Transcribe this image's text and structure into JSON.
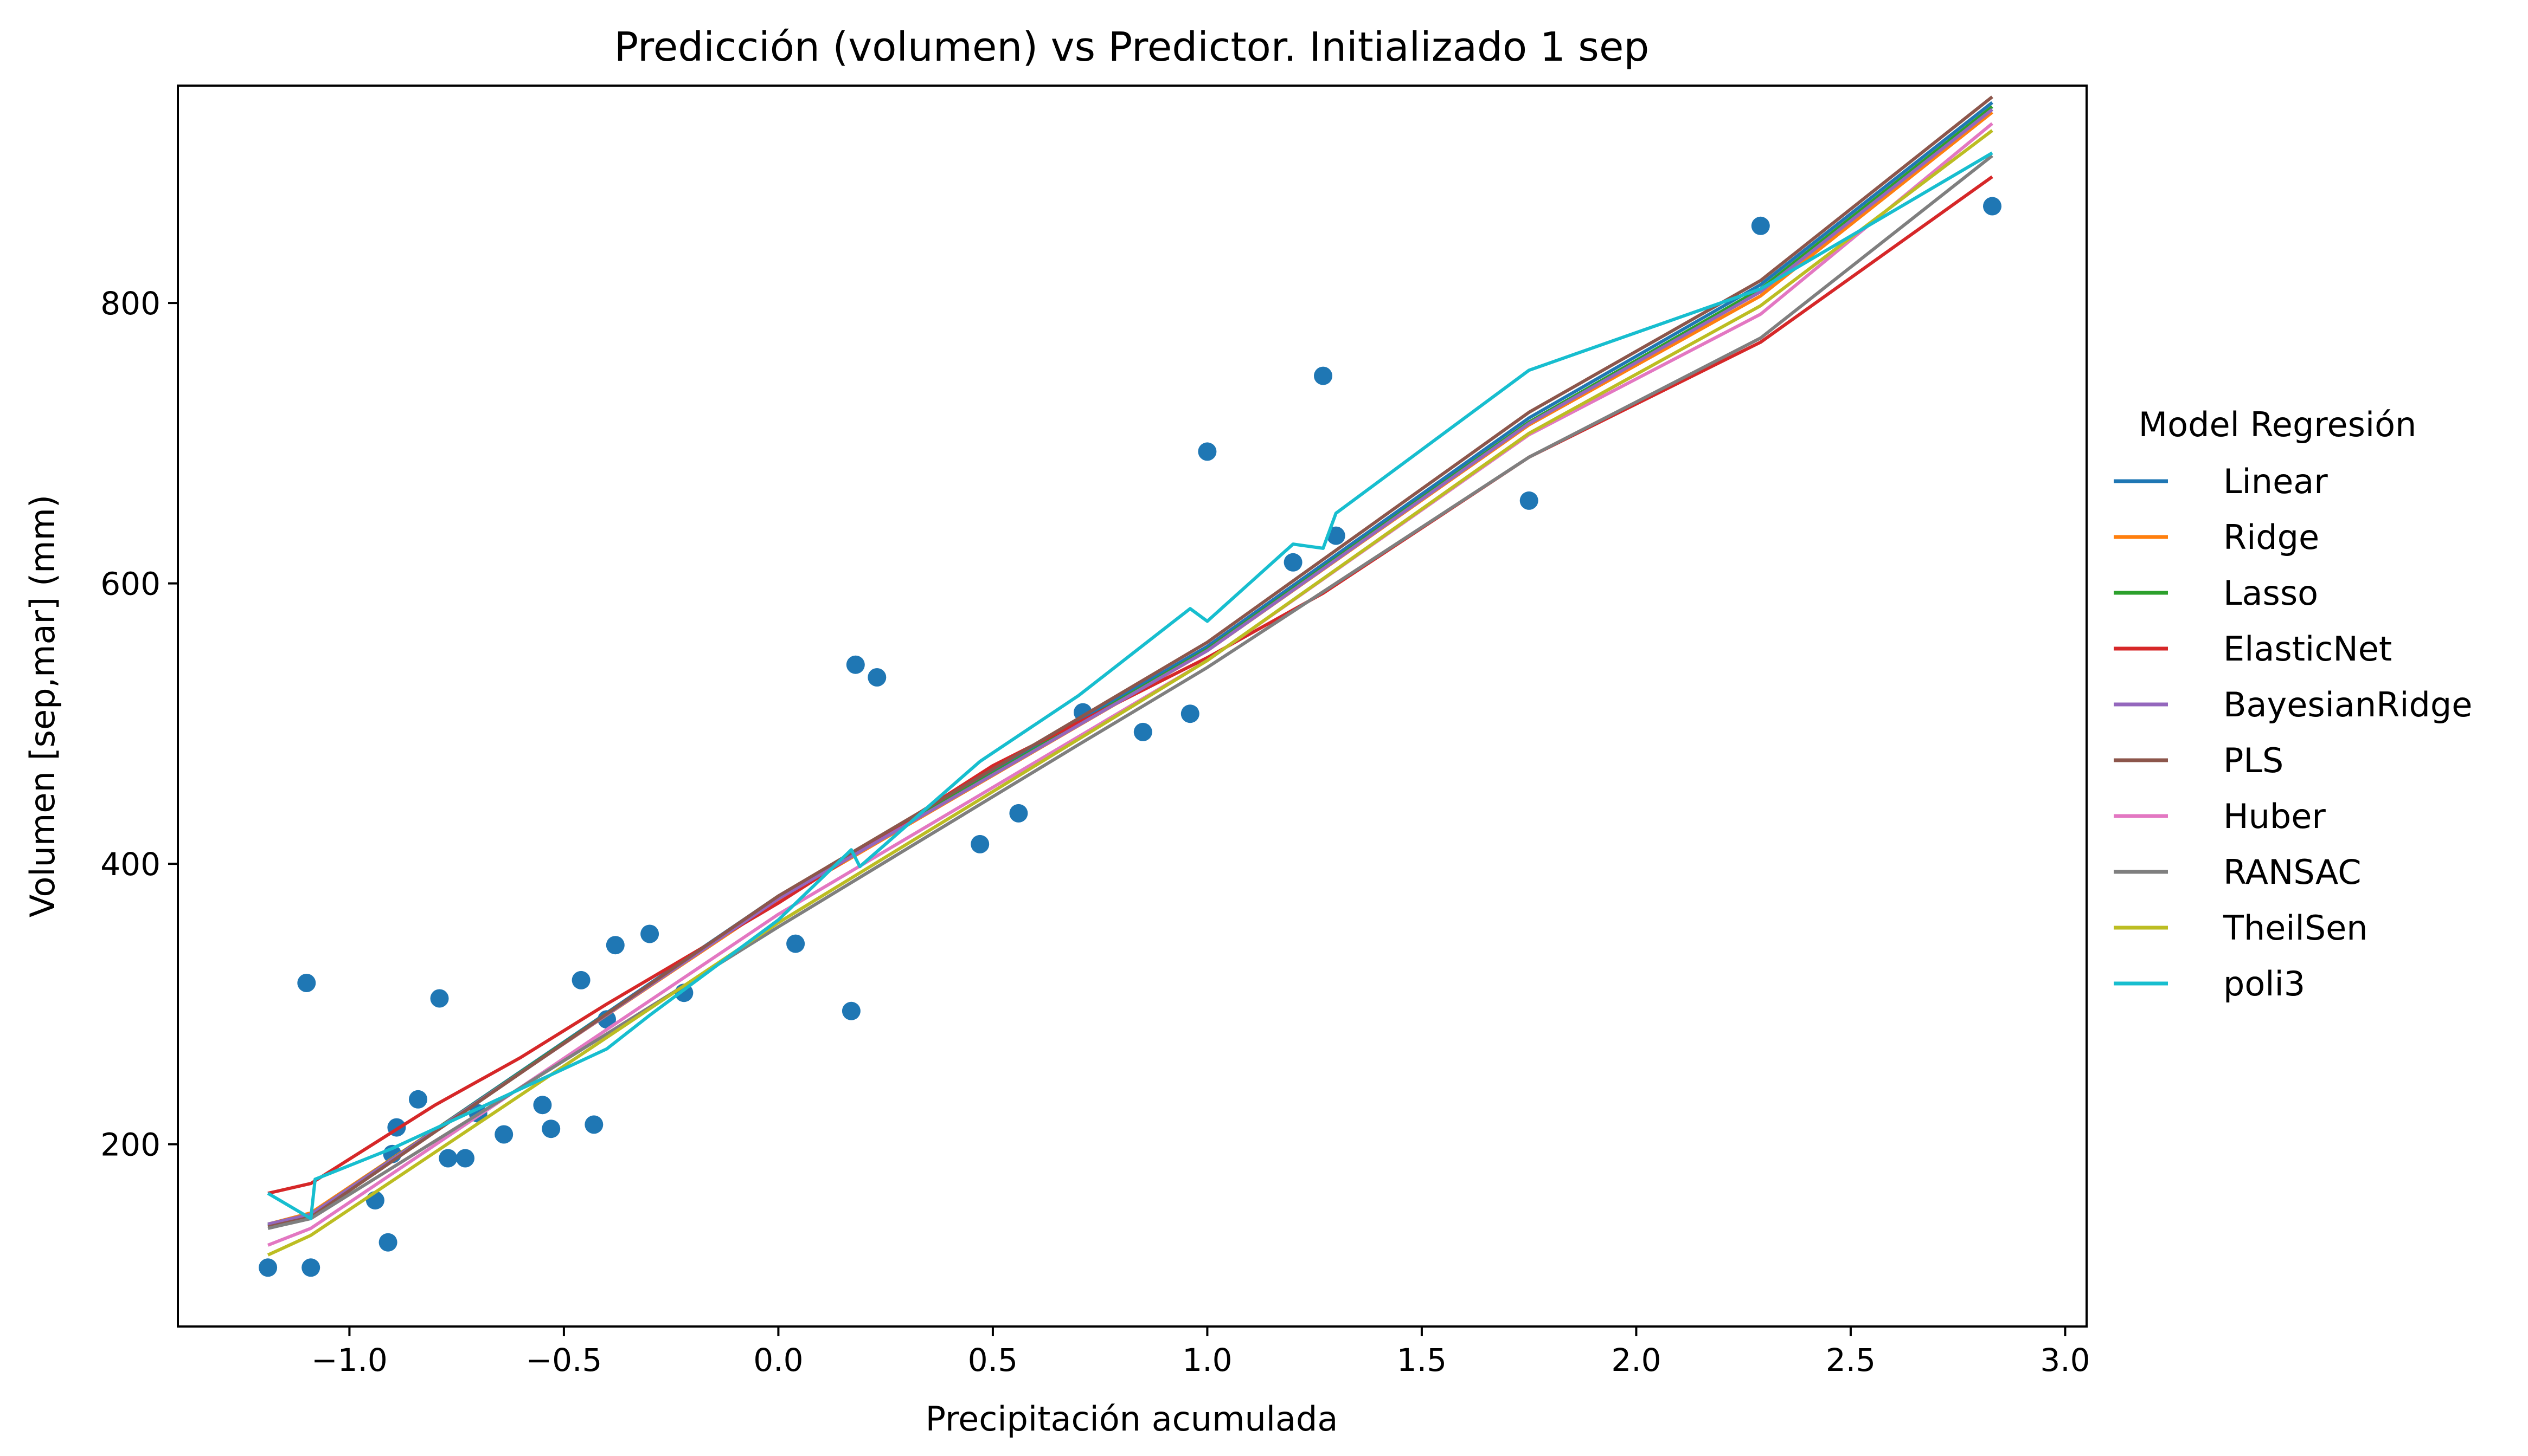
{
  "chart_data": {
    "type": "line",
    "title": "Predicción (volumen) vs Predictor. Initializado 1 sep",
    "xlabel": "Precipitación acumulada",
    "ylabel": "Volumen  [sep,mar]  (mm)",
    "xlim": [
      -1.4,
      3.05
    ],
    "ylim": [
      70,
      955
    ],
    "xticks": [
      -1.0,
      -0.5,
      0.0,
      0.5,
      1.0,
      1.5,
      2.0,
      2.5,
      3.0
    ],
    "xtick_labels": [
      "−1.0",
      "−0.5",
      "0.0",
      "0.5",
      "1.0",
      "1.5",
      "2.0",
      "2.5",
      "3.0"
    ],
    "yticks": [
      200,
      400,
      600,
      800
    ],
    "ytick_labels": [
      "200",
      "400",
      "600",
      "800"
    ],
    "grid": false,
    "legend_title": "Model Regresión",
    "legend_placement": "outside-right",
    "scatter": {
      "color": "#1f77b4",
      "points": [
        [
          -1.19,
          112
        ],
        [
          -1.1,
          315
        ],
        [
          -1.09,
          112
        ],
        [
          -0.94,
          160
        ],
        [
          -0.91,
          130
        ],
        [
          -0.9,
          193
        ],
        [
          -0.89,
          212
        ],
        [
          -0.84,
          232
        ],
        [
          -0.79,
          304
        ],
        [
          -0.77,
          190
        ],
        [
          -0.73,
          190
        ],
        [
          -0.7,
          222
        ],
        [
          -0.64,
          207
        ],
        [
          -0.55,
          228
        ],
        [
          -0.53,
          211
        ],
        [
          -0.46,
          317
        ],
        [
          -0.43,
          214
        ],
        [
          -0.4,
          289
        ],
        [
          -0.38,
          342
        ],
        [
          -0.3,
          350
        ],
        [
          -0.22,
          308
        ],
        [
          0.04,
          343
        ],
        [
          0.17,
          295
        ],
        [
          0.18,
          542
        ],
        [
          0.23,
          533
        ],
        [
          0.47,
          414
        ],
        [
          0.56,
          436
        ],
        [
          0.71,
          508
        ],
        [
          0.85,
          494
        ],
        [
          0.96,
          507
        ],
        [
          1.0,
          694
        ],
        [
          1.2,
          615
        ],
        [
          1.27,
          748
        ],
        [
          1.3,
          634
        ],
        [
          1.75,
          659
        ],
        [
          2.29,
          855
        ],
        [
          2.83,
          869
        ]
      ]
    },
    "series": [
      {
        "name": "Linear",
        "color": "#1f77b4",
        "x": [
          -1.19,
          -1.09,
          0.0,
          1.0,
          1.75,
          2.29,
          2.83
        ],
        "values": [
          142,
          150,
          377,
          555,
          718,
          813,
          943
        ]
      },
      {
        "name": "Ridge",
        "color": "#ff7f0e",
        "x": [
          -1.19,
          -1.09,
          0.0,
          1.0,
          1.75,
          2.29,
          2.83
        ],
        "values": [
          143,
          151,
          374,
          552,
          713,
          805,
          936
        ]
      },
      {
        "name": "Lasso",
        "color": "#2ca02c",
        "x": [
          -1.19,
          -1.09,
          0.0,
          1.0,
          1.75,
          2.29,
          2.83
        ],
        "values": [
          143,
          150,
          376,
          553,
          715,
          810,
          940
        ]
      },
      {
        "name": "ElasticNet",
        "color": "#d62728",
        "x": [
          -1.19,
          -1.09,
          -0.8,
          -0.6,
          -0.4,
          0.0,
          0.5,
          1.0,
          1.27,
          1.75,
          2.29,
          2.83
        ],
        "values": [
          165,
          172,
          228,
          262,
          300,
          372,
          470,
          547,
          593,
          690,
          772,
          890
        ]
      },
      {
        "name": "BayesianRidge",
        "color": "#9467bd",
        "x": [
          -1.19,
          -1.09,
          0.0,
          1.0,
          1.75,
          2.29,
          2.83
        ],
        "values": [
          143,
          150,
          375,
          552,
          714,
          808,
          938
        ]
      },
      {
        "name": "PLS",
        "color": "#8c564b",
        "x": [
          -1.19,
          -1.09,
          0.0,
          1.0,
          1.75,
          2.29,
          2.83
        ],
        "values": [
          141,
          148,
          377,
          558,
          722,
          816,
          947
        ]
      },
      {
        "name": "Huber",
        "color": "#e377c2",
        "x": [
          -1.19,
          -1.09,
          0.0,
          1.0,
          1.75,
          2.29,
          2.83
        ],
        "values": [
          128,
          140,
          364,
          545,
          706,
          792,
          928
        ]
      },
      {
        "name": "RANSAC",
        "color": "#7f7f7f",
        "x": [
          -1.19,
          -1.09,
          0.0,
          0.7,
          1.0,
          1.75,
          2.29,
          2.83
        ],
        "values": [
          140,
          147,
          355,
          485,
          540,
          690,
          775,
          905
        ]
      },
      {
        "name": "TheilSen",
        "color": "#bcbd22",
        "x": [
          -1.19,
          -1.09,
          0.0,
          1.0,
          1.75,
          2.29,
          2.83
        ],
        "values": [
          121,
          135,
          358,
          545,
          707,
          798,
          923
        ]
      },
      {
        "name": "poli3",
        "color": "#17becf",
        "x": [
          -1.19,
          -1.09,
          -1.08,
          -0.9,
          -0.4,
          -0.3,
          0.0,
          0.17,
          0.19,
          0.47,
          0.7,
          0.96,
          1.0,
          1.2,
          1.27,
          1.3,
          1.75,
          2.29,
          2.83
        ],
        "values": [
          165,
          147,
          175,
          197,
          268,
          292,
          360,
          410,
          398,
          473,
          520,
          582,
          573,
          628,
          625,
          650,
          752,
          810,
          907
        ]
      }
    ]
  }
}
